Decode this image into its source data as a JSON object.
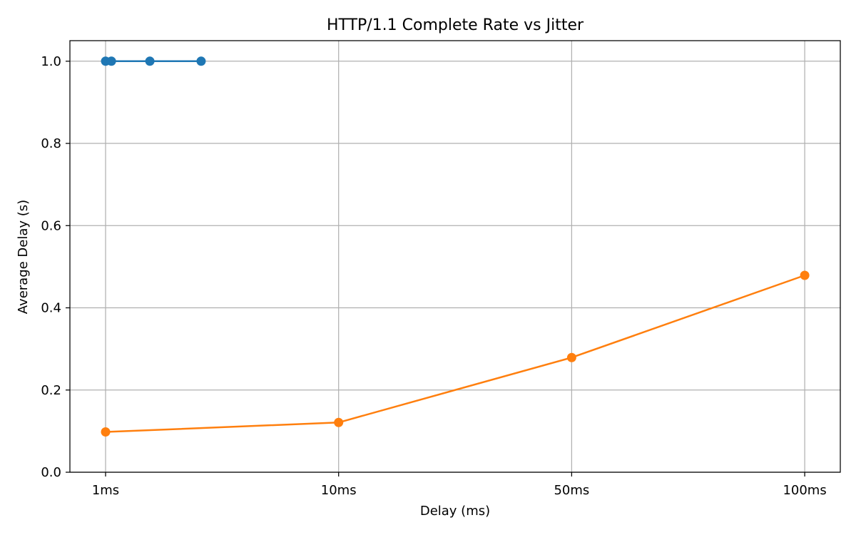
{
  "chart_data": {
    "type": "line",
    "title": "HTTP/1.1 Complete Rate vs Jitter",
    "xlabel": "Delay (ms)",
    "ylabel": "Average Delay (s)",
    "categories": [
      "1ms",
      "10ms",
      "50ms",
      "100ms"
    ],
    "ylim": [
      0.0,
      1.05
    ],
    "yticks": [
      "0.0",
      "0.2",
      "0.4",
      "0.6",
      "0.8",
      "1.0"
    ],
    "grid": true,
    "series": [
      {
        "color": "#1f77b4",
        "points": [
          {
            "x": 0.0,
            "y": 1.0
          },
          {
            "x": 0.025,
            "y": 1.0
          },
          {
            "x": 0.19,
            "y": 1.0
          },
          {
            "x": 0.41,
            "y": 1.0
          }
        ]
      },
      {
        "color": "#ff7f0e",
        "points": [
          {
            "x": 0,
            "y": 0.098
          },
          {
            "x": 1,
            "y": 0.121
          },
          {
            "x": 2,
            "y": 0.279
          },
          {
            "x": 3,
            "y": 0.479
          }
        ]
      }
    ]
  }
}
